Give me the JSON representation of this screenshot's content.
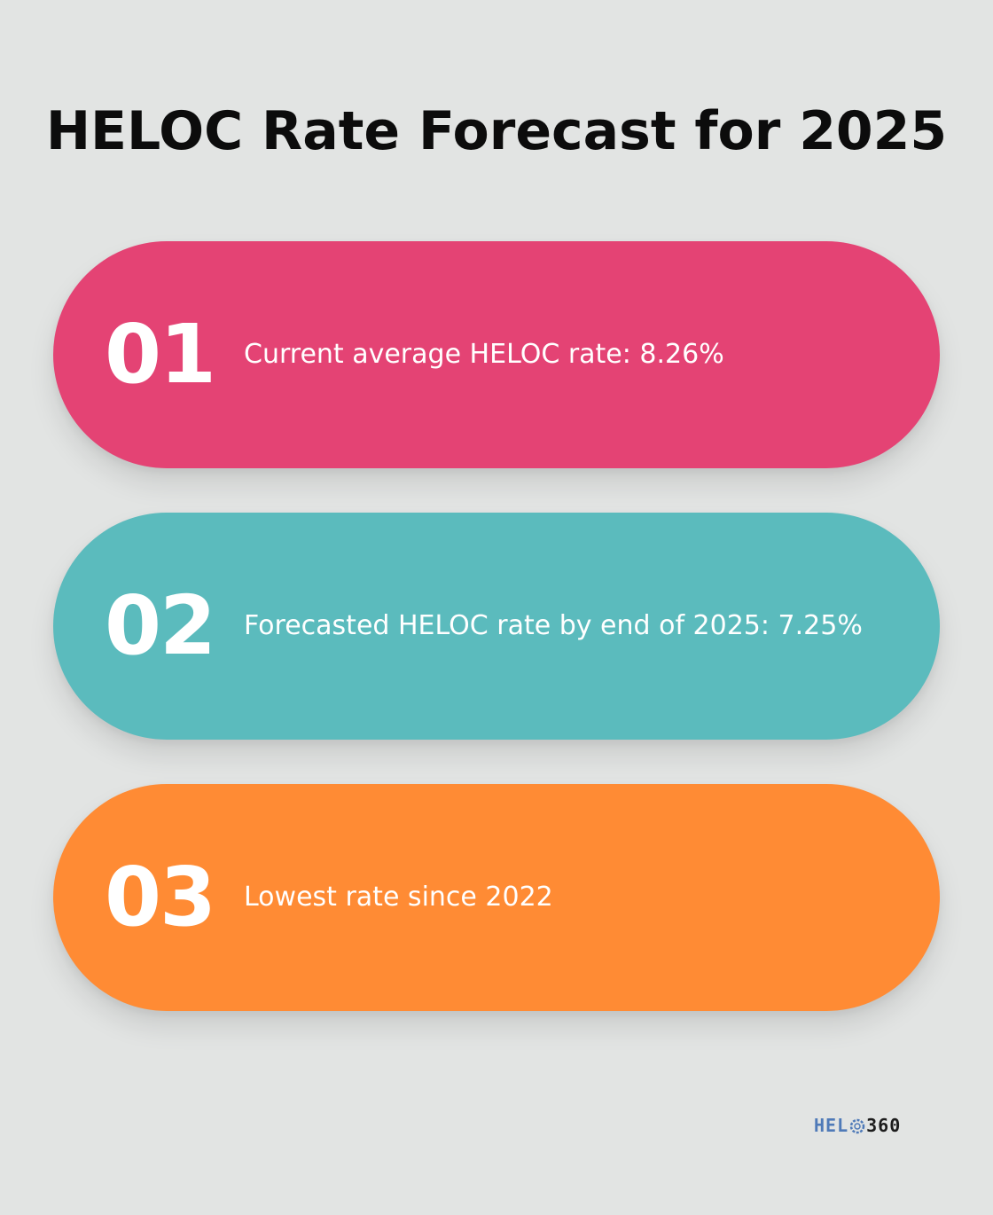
{
  "title": "HELOC Rate Forecast for 2025",
  "items": [
    {
      "number": "01",
      "text": "Current average HELOC rate: 8.26%",
      "color": "#e44374"
    },
    {
      "number": "02",
      "text": "Forecasted HELOC rate by end of 2025: 7.25%",
      "color": "#5bbbbd"
    },
    {
      "number": "03",
      "text": "Lowest rate since 2022",
      "color": "#ff8b34"
    }
  ],
  "logo": {
    "part1": "HEL",
    "part2": "360",
    "icon": "heloc360-logo-ring-icon"
  }
}
